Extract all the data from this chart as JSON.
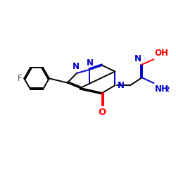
{
  "bg_color": "#ffffff",
  "bond_color": "#000000",
  "N_color": "#0000cd",
  "O_color": "#ff0000",
  "F_color": "#555555",
  "figsize": [
    2.5,
    2.5
  ],
  "dpi": 100,
  "lw": 1.4,
  "fs": 8.5,
  "fs_sub": 6.5,
  "xlim": [
    0,
    10
  ],
  "ylim": [
    0,
    10
  ]
}
